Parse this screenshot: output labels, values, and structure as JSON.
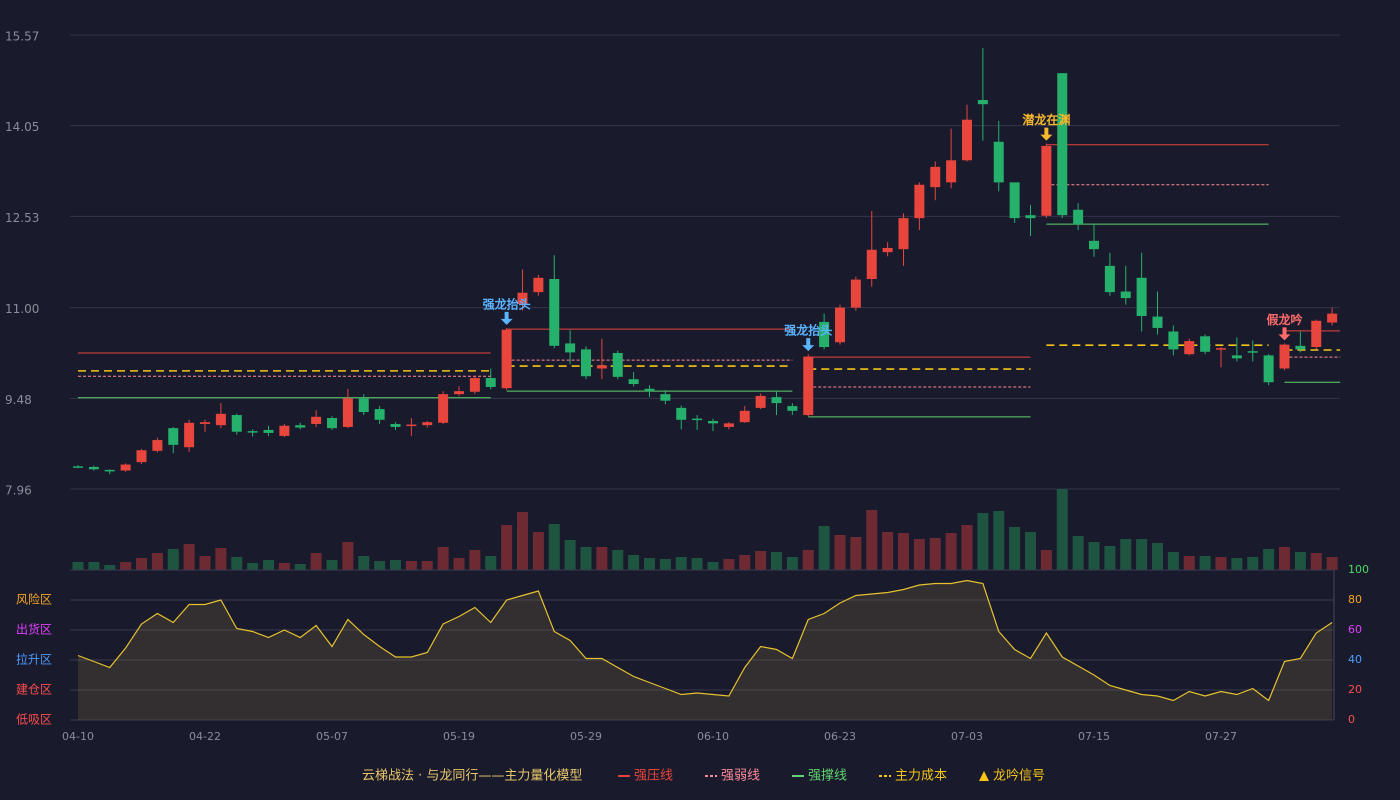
{
  "chart_data": {
    "type": "candlestick",
    "categories": [
      "04-10",
      null,
      null,
      null,
      null,
      null,
      null,
      null,
      "04-22",
      null,
      null,
      null,
      null,
      null,
      null,
      null,
      "05-07",
      null,
      null,
      null,
      null,
      null,
      null,
      null,
      "05-19",
      null,
      null,
      null,
      null,
      null,
      null,
      null,
      "05-29",
      null,
      null,
      null,
      null,
      null,
      null,
      null,
      "06-10",
      null,
      null,
      null,
      null,
      null,
      null,
      null,
      "06-23",
      null,
      null,
      null,
      null,
      null,
      null,
      null,
      "07-03",
      null,
      null,
      null,
      null,
      null,
      null,
      null,
      "07-15",
      null,
      null,
      null,
      null,
      null,
      null,
      null,
      "07-27",
      null,
      null,
      null,
      null,
      null,
      null,
      null
    ],
    "open": [
      8.34,
      8.33,
      8.28,
      8.27,
      8.41,
      8.6,
      8.98,
      8.66,
      9.05,
      9.03,
      9.2,
      8.93,
      8.95,
      8.85,
      9.03,
      9.05,
      9.15,
      9.0,
      9.48,
      9.3,
      9.05,
      9.02,
      9.03,
      9.07,
      9.55,
      9.59,
      9.82,
      9.65,
      11.06,
      11.26,
      11.48,
      10.4,
      10.3,
      9.98,
      10.24,
      9.8,
      9.64,
      9.55,
      9.32,
      9.14,
      9.1,
      9.0,
      9.08,
      9.32,
      9.5,
      9.35,
      9.2,
      10.76,
      10.42,
      11.0,
      11.48,
      11.93,
      11.98,
      12.5,
      13.02,
      13.1,
      13.47,
      14.48,
      13.78,
      13.1,
      12.55,
      12.54,
      14.93,
      12.64,
      12.12,
      11.7,
      11.27,
      11.5,
      10.85,
      10.6,
      10.22,
      10.52,
      10.3,
      10.2,
      10.27,
      10.2,
      9.98,
      10.36,
      10.34,
      10.75
    ],
    "high": [
      8.36,
      8.35,
      8.29,
      8.39,
      8.63,
      8.82,
      9.0,
      9.12,
      9.12,
      9.4,
      9.22,
      8.96,
      9.02,
      9.05,
      9.07,
      9.28,
      9.18,
      9.64,
      9.55,
      9.35,
      9.08,
      9.15,
      9.1,
      9.6,
      9.68,
      9.85,
      9.98,
      10.66,
      11.64,
      11.55,
      11.88,
      10.62,
      10.35,
      10.48,
      10.28,
      9.92,
      9.7,
      9.62,
      9.36,
      9.2,
      9.14,
      9.08,
      9.35,
      9.56,
      9.6,
      9.4,
      10.22,
      10.9,
      11.05,
      11.52,
      12.62,
      12.1,
      12.58,
      13.1,
      13.45,
      14.0,
      14.4,
      15.35,
      14.13,
      13.1,
      12.72,
      13.75,
      14.93,
      12.75,
      12.4,
      11.92,
      11.7,
      11.92,
      11.27,
      10.7,
      10.48,
      10.55,
      10.34,
      10.5,
      10.45,
      10.22,
      10.4,
      10.6,
      10.8,
      11.0
    ],
    "low": [
      8.31,
      8.27,
      8.21,
      8.25,
      8.38,
      8.57,
      8.56,
      8.58,
      8.92,
      8.98,
      8.87,
      8.84,
      8.85,
      8.83,
      8.96,
      9.0,
      8.95,
      8.98,
      9.2,
      9.05,
      8.95,
      8.85,
      8.99,
      9.05,
      9.52,
      9.55,
      9.63,
      9.62,
      10.95,
      11.2,
      10.32,
      10.05,
      9.8,
      9.8,
      9.8,
      9.68,
      9.5,
      9.38,
      8.96,
      8.95,
      8.93,
      8.96,
      9.07,
      9.3,
      9.2,
      9.2,
      9.18,
      10.3,
      10.38,
      10.95,
      11.35,
      11.86,
      11.7,
      12.3,
      12.8,
      13.0,
      13.45,
      13.8,
      12.95,
      12.42,
      12.2,
      12.5,
      12.5,
      12.3,
      11.85,
      11.2,
      11.05,
      10.6,
      10.55,
      10.2,
      10.2,
      10.22,
      10.0,
      10.1,
      10.1,
      9.7,
      9.95,
      10.25,
      10.3,
      10.7
    ],
    "close": [
      8.32,
      8.29,
      8.26,
      8.37,
      8.61,
      8.78,
      8.7,
      9.07,
      9.08,
      9.22,
      8.92,
      8.92,
      8.9,
      9.02,
      8.99,
      9.17,
      8.98,
      9.48,
      9.25,
      9.12,
      9.0,
      9.04,
      9.08,
      9.55,
      9.6,
      9.82,
      9.67,
      10.63,
      11.25,
      11.5,
      10.36,
      10.25,
      9.85,
      10.03,
      9.84,
      9.72,
      9.6,
      9.44,
      9.12,
      9.12,
      9.06,
      9.06,
      9.27,
      9.52,
      9.4,
      9.27,
      10.18,
      10.34,
      11.0,
      11.47,
      11.97,
      12.0,
      12.5,
      13.06,
      13.36,
      13.47,
      14.15,
      14.41,
      13.1,
      12.5,
      12.5,
      13.71,
      12.55,
      12.4,
      11.98,
      11.26,
      11.16,
      10.86,
      10.66,
      10.3,
      10.44,
      10.26,
      10.32,
      10.15,
      10.25,
      9.75,
      10.38,
      10.3,
      10.78,
      10.9
    ],
    "up_color": "#e8453c",
    "down_color": "#25b06b",
    "up_volume_color": "#6e2a33",
    "down_volume_color": "#1d5540",
    "ylim": [
      7.96,
      15.57
    ],
    "yticks": [
      7.96,
      9.48,
      {
        "value": 11,
        "label": "11.00"
      },
      12.53,
      14.05,
      15.57
    ],
    "grid": true,
    "volume": [
      8,
      8,
      5,
      8,
      12,
      17,
      21,
      26,
      14,
      22,
      13,
      7,
      10,
      7,
      6,
      17,
      10,
      28,
      14,
      9,
      10,
      9,
      9,
      23,
      12,
      20,
      14,
      45,
      58,
      38,
      46,
      30,
      23,
      23,
      20,
      15,
      12,
      11,
      13,
      12,
      8,
      11,
      15,
      19,
      18,
      13,
      20,
      44,
      35,
      33,
      60,
      38,
      37,
      31,
      32,
      37,
      45,
      57,
      59,
      43,
      38,
      20,
      81,
      34,
      28,
      24,
      31,
      31,
      27,
      18,
      14,
      14,
      13,
      12,
      13,
      21,
      23,
      18,
      17,
      13
    ],
    "vlim": [
      0,
      81
    ],
    "levels": [
      {
        "name": "强压线",
        "color": "#e8453c",
        "dashed": false,
        "segments": [
          {
            "from": 0,
            "to": 26,
            "value": 10.24
          },
          {
            "from": 27,
            "to": 45,
            "value": 10.64
          },
          {
            "from": 46,
            "to": 60,
            "value": 10.17
          },
          {
            "from": 61,
            "to": 75,
            "value": 13.73
          },
          {
            "from": 76,
            "to": 79,
            "value": 10.61
          }
        ]
      },
      {
        "name": "强弱线",
        "color": "#ff8a9a",
        "dashed": true,
        "segments": [
          {
            "from": 0,
            "to": 26,
            "value": 9.85
          },
          {
            "from": 27,
            "to": 45,
            "value": 10.12
          },
          {
            "from": 46,
            "to": 60,
            "value": 9.67
          },
          {
            "from": 61,
            "to": 75,
            "value": 13.06
          },
          {
            "from": 76,
            "to": 79,
            "value": 10.17
          }
        ]
      },
      {
        "name": "强撑线",
        "color": "#5fd46e",
        "dashed": false,
        "segments": [
          {
            "from": 0,
            "to": 26,
            "value": 9.49
          },
          {
            "from": 27,
            "to": 45,
            "value": 9.6
          },
          {
            "from": 46,
            "to": 60,
            "value": 9.17
          },
          {
            "from": 61,
            "to": 75,
            "value": 12.4
          },
          {
            "from": 76,
            "to": 79,
            "value": 9.75
          }
        ]
      },
      {
        "name": "主力成本",
        "color": "#f5c518",
        "dashed": true,
        "segments": [
          {
            "from": 0,
            "to": 26,
            "value": 9.94
          },
          {
            "from": 27,
            "to": 45,
            "value": 10.02
          },
          {
            "from": 46,
            "to": 60,
            "value": 9.97
          },
          {
            "from": 61,
            "to": 75,
            "value": 10.37
          },
          {
            "from": 76,
            "to": 79,
            "value": 10.29
          }
        ]
      }
    ],
    "signals": [
      {
        "index": 27,
        "label": "强龙抬头",
        "color": "#5ab4ff"
      },
      {
        "index": 46,
        "label": "强龙抬头",
        "color": "#5ab4ff"
      },
      {
        "index": 61,
        "label": "潜龙在渊",
        "color": "#f5b82e"
      },
      {
        "index": 76,
        "label": "假龙吟",
        "color": "#ff6b6b"
      }
    ],
    "signal_legend": {
      "name": "龙吟信号",
      "color": "#f5c518"
    },
    "legend_title": "云梯战法 · 与龙同行——主力量化模型",
    "legend_title_color": "#e8c66a",
    "oscillator": {
      "values": [
        43,
        39,
        35,
        48,
        64,
        71,
        65,
        77,
        77,
        80,
        61,
        59,
        55,
        60,
        55,
        63,
        49,
        67,
        57,
        49,
        42,
        42,
        45,
        64,
        69,
        75,
        65,
        80,
        83,
        86,
        59,
        53,
        41,
        41,
        35,
        29,
        25,
        21,
        17,
        18,
        17,
        16,
        35,
        49,
        47,
        41,
        67,
        71,
        78,
        83,
        84,
        85,
        87,
        90,
        91,
        91,
        93,
        91,
        59,
        47,
        41,
        58,
        42,
        36,
        30,
        23,
        20,
        17,
        16,
        13,
        19,
        16,
        19,
        17,
        21,
        13,
        39,
        41,
        58,
        65
      ],
      "color": "#e5c22e",
      "ylim": [
        0,
        100
      ],
      "yticks": [
        0,
        20,
        40,
        60,
        80,
        100
      ],
      "tick_colors": [
        "#ff4d4d",
        "#ff4d4d",
        "#4d9bff",
        "#e040fb",
        "#f5a623",
        "#4cd964"
      ],
      "zones": [
        {
          "value": 80,
          "label": "风险区",
          "color": "#f5a623"
        },
        {
          "value": 60,
          "label": "出货区",
          "color": "#e040fb"
        },
        {
          "value": 40,
          "label": "拉升区",
          "color": "#4d9bff"
        },
        {
          "value": 20,
          "label": "建仓区",
          "color": "#ff4d4d"
        },
        {
          "value": 0,
          "label": "低吸区",
          "color": "#ff4d4d"
        }
      ]
    }
  }
}
